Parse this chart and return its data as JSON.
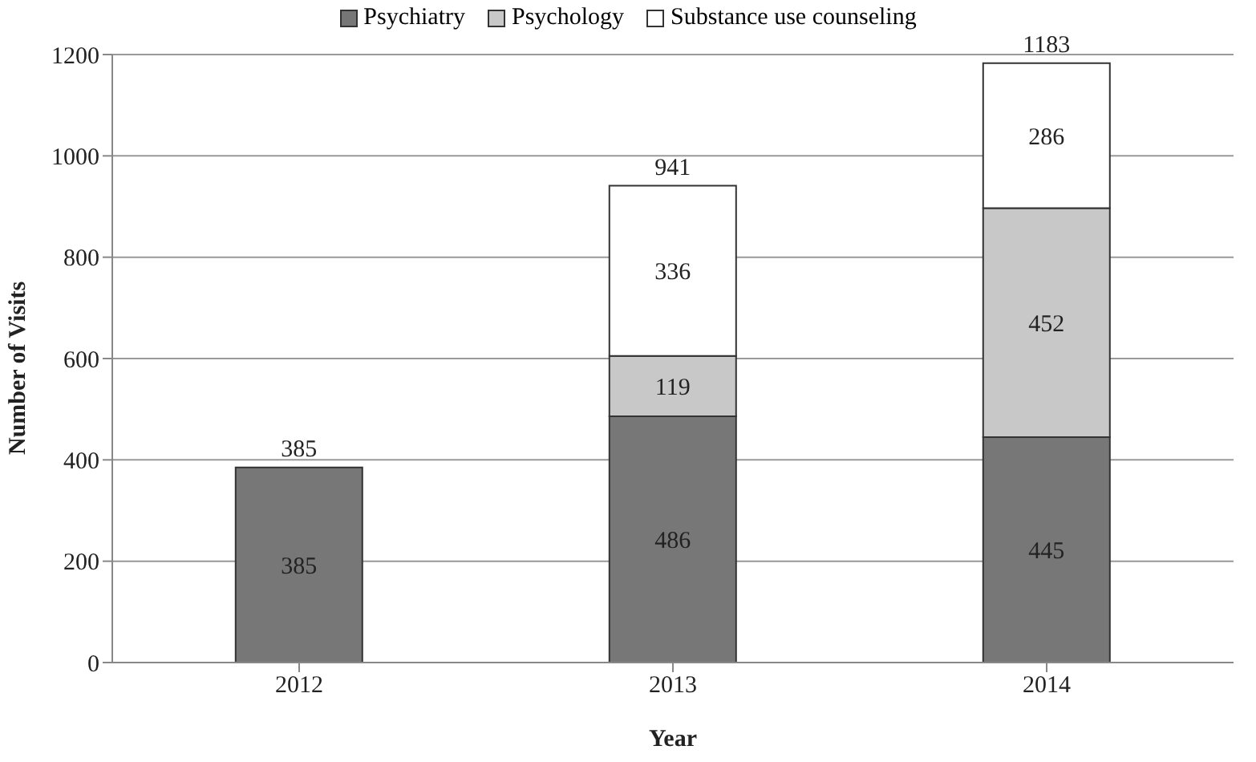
{
  "chart_data": {
    "type": "bar",
    "stacked": true,
    "xlabel": "Year",
    "ylabel": "Number of Visits",
    "categories": [
      "2012",
      "2013",
      "2014"
    ],
    "series": [
      {
        "name": "Psychiatry",
        "color": "#777777",
        "values": [
          385,
          486,
          445
        ]
      },
      {
        "name": "Psychology",
        "color": "#c8c8c8",
        "values": [
          null,
          119,
          452
        ]
      },
      {
        "name": "Substance use counseling",
        "color": "#ffffff",
        "values": [
          null,
          336,
          286
        ]
      }
    ],
    "totals": [
      "385",
      "941",
      "1183"
    ],
    "data_labels": true,
    "ylim": [
      0,
      1200
    ],
    "yticks": [
      0,
      200,
      400,
      600,
      800,
      1000,
      1200
    ],
    "grid": "y",
    "legend": "top"
  }
}
